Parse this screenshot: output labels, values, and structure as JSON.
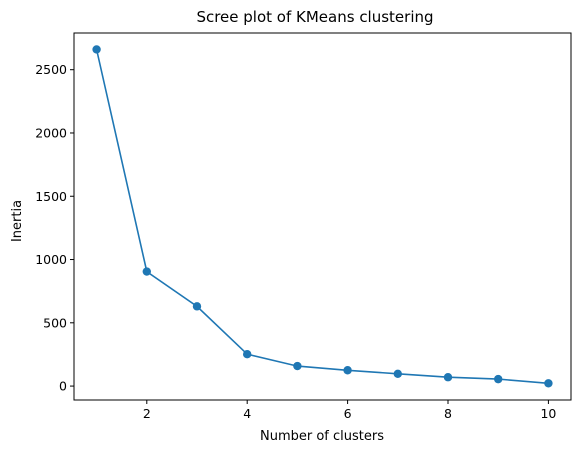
{
  "chart_data": {
    "type": "line",
    "title": "Scree plot of KMeans clustering",
    "xlabel": "Number of clusters",
    "ylabel": "Inertia",
    "x": [
      1,
      2,
      3,
      4,
      5,
      6,
      7,
      8,
      9,
      10
    ],
    "series": [
      {
        "values": [
          2660,
          905,
          630,
          252,
          158,
          125,
          97,
          70,
          55,
          22
        ],
        "color": "#1f77b4",
        "marker": "circle"
      }
    ],
    "xlim": [
      0.55,
      10.45
    ],
    "ylim": [
      -110,
      2790
    ],
    "xticks": [
      2,
      4,
      6,
      8,
      10
    ],
    "yticks": [
      0,
      500,
      1000,
      1500,
      2000,
      2500
    ],
    "grid": false,
    "legend": false
  }
}
